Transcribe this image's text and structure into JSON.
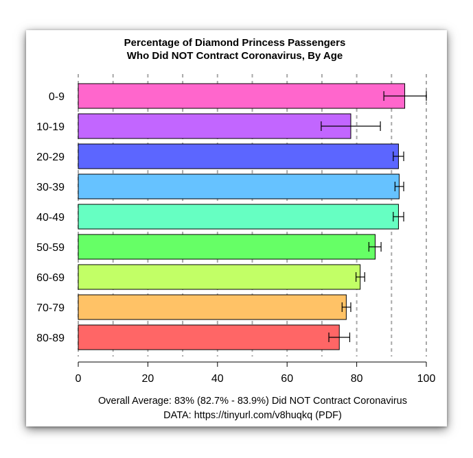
{
  "chart_data": {
    "type": "bar",
    "orientation": "horizontal",
    "title": "Percentage of Diamond Princess Passengers",
    "subtitle": "Who Did NOT Contract Coronavirus, By Age",
    "categories": [
      "0-9",
      "10-19",
      "20-29",
      "30-39",
      "40-49",
      "50-59",
      "60-69",
      "70-79",
      "80-89"
    ],
    "values": [
      93.8,
      78.3,
      92.0,
      92.2,
      92.0,
      85.3,
      81.0,
      77.0,
      75.0
    ],
    "error_low": [
      87.8,
      69.8,
      90.5,
      91.0,
      90.5,
      83.5,
      79.8,
      75.8,
      72.0
    ],
    "error_high": [
      100,
      86.8,
      93.5,
      93.5,
      93.5,
      87.0,
      82.3,
      78.3,
      78.0
    ],
    "colors": [
      "#ff66cc",
      "#c266ff",
      "#5c66ff",
      "#66c2ff",
      "#66ffc2",
      "#66ff66",
      "#c2ff66",
      "#ffc266",
      "#ff6666"
    ],
    "xlim": [
      0,
      100
    ],
    "xticks": [
      0,
      20,
      40,
      60,
      80,
      100
    ],
    "gridlines": [
      0,
      10,
      20,
      30,
      40,
      50,
      60,
      70,
      80,
      90,
      100
    ],
    "grid": true,
    "notes": [
      "Overall Average: 83% (82.7% - 83.9%) Did NOT Contract Coronavirus",
      "DATA: https://tinyurl.com/v8huqkq (PDF)"
    ]
  }
}
